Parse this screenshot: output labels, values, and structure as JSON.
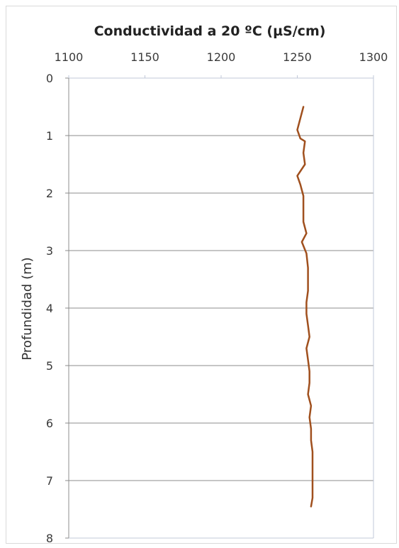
{
  "chart_data": {
    "type": "line",
    "title": "Conductividad a  20 ºC (µS/cm)",
    "xlabel": "",
    "ylabel": "Profundidad (m)",
    "x_axis_position": "top",
    "y_axis_inverted": true,
    "xlim": [
      1100,
      1300
    ],
    "ylim": [
      0,
      8
    ],
    "x_ticks": [
      "1100",
      "1150",
      "1200",
      "1250",
      "1300"
    ],
    "y_ticks": [
      "0",
      "1",
      "2",
      "3",
      "4",
      "5",
      "6",
      "7",
      "8"
    ],
    "grid": "horizontal",
    "legend": "none",
    "series": [
      {
        "color": "#a0501e",
        "points": [
          {
            "x": 1254,
            "depth": 0.5
          },
          {
            "x": 1252,
            "depth": 0.7
          },
          {
            "x": 1250,
            "depth": 0.9
          },
          {
            "x": 1252,
            "depth": 1.05
          },
          {
            "x": 1255,
            "depth": 1.1
          },
          {
            "x": 1254,
            "depth": 1.3
          },
          {
            "x": 1255,
            "depth": 1.5
          },
          {
            "x": 1250,
            "depth": 1.7
          },
          {
            "x": 1252,
            "depth": 1.85
          },
          {
            "x": 1254,
            "depth": 2.05
          },
          {
            "x": 1254,
            "depth": 2.3
          },
          {
            "x": 1254,
            "depth": 2.5
          },
          {
            "x": 1256,
            "depth": 2.7
          },
          {
            "x": 1253,
            "depth": 2.85
          },
          {
            "x": 1256,
            "depth": 3.05
          },
          {
            "x": 1257,
            "depth": 3.3
          },
          {
            "x": 1257,
            "depth": 3.5
          },
          {
            "x": 1257,
            "depth": 3.7
          },
          {
            "x": 1256,
            "depth": 3.9
          },
          {
            "x": 1256,
            "depth": 4.1
          },
          {
            "x": 1257,
            "depth": 4.3
          },
          {
            "x": 1258,
            "depth": 4.5
          },
          {
            "x": 1256,
            "depth": 4.7
          },
          {
            "x": 1257,
            "depth": 4.9
          },
          {
            "x": 1258,
            "depth": 5.1
          },
          {
            "x": 1258,
            "depth": 5.3
          },
          {
            "x": 1257,
            "depth": 5.5
          },
          {
            "x": 1259,
            "depth": 5.7
          },
          {
            "x": 1258,
            "depth": 5.9
          },
          {
            "x": 1259,
            "depth": 6.1
          },
          {
            "x": 1259,
            "depth": 6.3
          },
          {
            "x": 1260,
            "depth": 6.5
          },
          {
            "x": 1260,
            "depth": 6.7
          },
          {
            "x": 1260,
            "depth": 6.9
          },
          {
            "x": 1260,
            "depth": 7.1
          },
          {
            "x": 1260,
            "depth": 7.3
          },
          {
            "x": 1259,
            "depth": 7.45
          }
        ]
      }
    ]
  }
}
